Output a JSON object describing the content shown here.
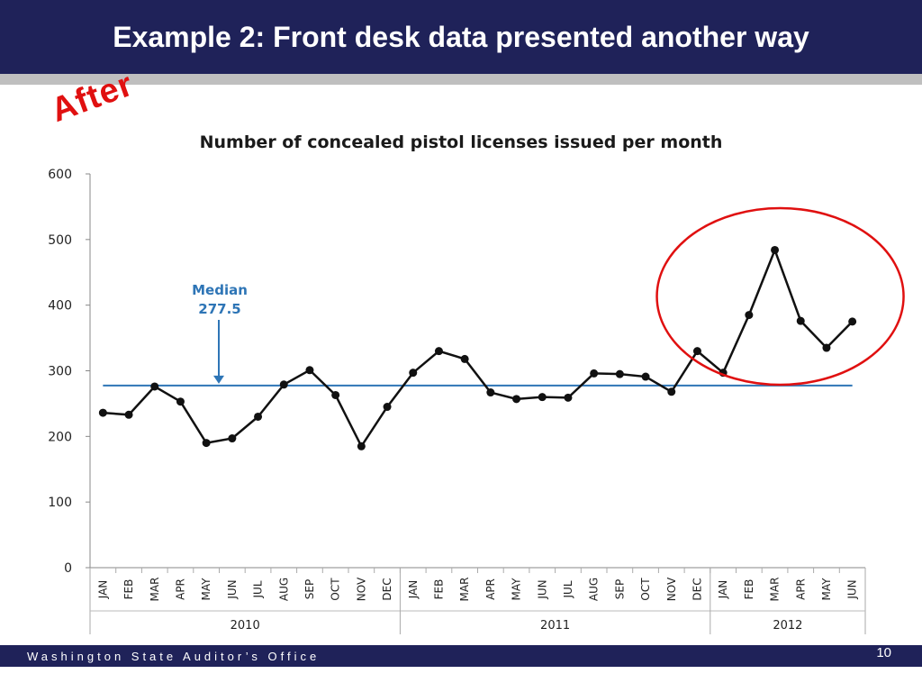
{
  "slide": {
    "title": "Example 2: Front desk data presented another way",
    "after_label": "After",
    "footer_office": "Washington State Auditor’s Office",
    "page_number": "10"
  },
  "colors": {
    "title_bar": "#1f2259",
    "median_line": "#2e75b6",
    "data_line": "#111111",
    "highlight_circle": "#e01010"
  },
  "chart_data": {
    "type": "line",
    "title": "Number of concealed pistol licenses issued per month",
    "categories": [
      "JAN",
      "FEB",
      "MAR",
      "APR",
      "MAY",
      "JUN",
      "JUL",
      "AUG",
      "SEP",
      "OCT",
      "NOV",
      "DEC",
      "JAN",
      "FEB",
      "MAR",
      "APR",
      "MAY",
      "JUN",
      "JUL",
      "AUG",
      "SEP",
      "OCT",
      "NOV",
      "DEC",
      "JAN",
      "FEB",
      "MAR",
      "APR",
      "MAY",
      "JUN"
    ],
    "years": [
      {
        "label": "2010",
        "start": 0,
        "count": 12
      },
      {
        "label": "2011",
        "start": 12,
        "count": 12
      },
      {
        "label": "2012",
        "start": 24,
        "count": 6
      }
    ],
    "series": [
      {
        "values": [
          236,
          233,
          276,
          253,
          190,
          197,
          230,
          279,
          301,
          263,
          185,
          245,
          297,
          330,
          318,
          267,
          257,
          260,
          259,
          296,
          295,
          291,
          268,
          330,
          297,
          385,
          484,
          376,
          335,
          375
        ]
      }
    ],
    "median": {
      "value": 277.5,
      "label": "Median",
      "value_label": "277.5"
    },
    "yticks": [
      0,
      100,
      200,
      300,
      400,
      500,
      600
    ],
    "ylim": [
      0,
      600
    ],
    "grid": false,
    "legend": "none",
    "annotations": [
      {
        "type": "circle",
        "label": "highlight of 2012 peak values",
        "covers_categories": [
          23,
          29
        ]
      }
    ]
  }
}
